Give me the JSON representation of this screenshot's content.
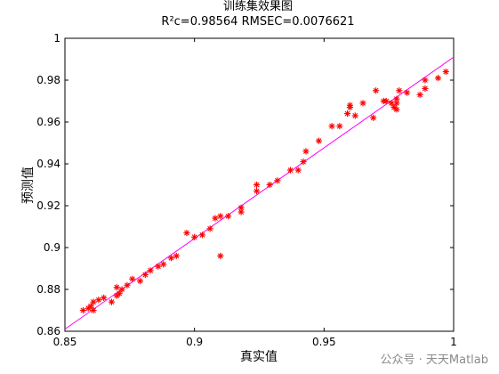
{
  "chart_data": {
    "type": "scatter",
    "title": "训练集效果图",
    "subtitle": "R²c=0.98564  RMSEC=0.0076621",
    "xlabel": "真实值",
    "ylabel": "预测值",
    "xlim": [
      0.85,
      1.0
    ],
    "ylim": [
      0.86,
      1.0
    ],
    "x_ticks": [
      "0.85",
      "0.9",
      "0.95",
      "1"
    ],
    "y_ticks": [
      "0.86",
      "0.88",
      "0.9",
      "0.92",
      "0.94",
      "0.96",
      "0.98",
      "1"
    ],
    "grid": false,
    "series": [
      {
        "marker": "asterisk",
        "color": "#ff0000",
        "points": [
          [
            0.857,
            0.87
          ],
          [
            0.859,
            0.871
          ],
          [
            0.86,
            0.872
          ],
          [
            0.861,
            0.87
          ],
          [
            0.861,
            0.874
          ],
          [
            0.863,
            0.875
          ],
          [
            0.865,
            0.876
          ],
          [
            0.868,
            0.874
          ],
          [
            0.87,
            0.877
          ],
          [
            0.871,
            0.878
          ],
          [
            0.87,
            0.881
          ],
          [
            0.872,
            0.88
          ],
          [
            0.874,
            0.882
          ],
          [
            0.876,
            0.885
          ],
          [
            0.879,
            0.884
          ],
          [
            0.881,
            0.887
          ],
          [
            0.883,
            0.889
          ],
          [
            0.886,
            0.891
          ],
          [
            0.888,
            0.892
          ],
          [
            0.891,
            0.895
          ],
          [
            0.893,
            0.896
          ],
          [
            0.897,
            0.907
          ],
          [
            0.9,
            0.905
          ],
          [
            0.903,
            0.906
          ],
          [
            0.906,
            0.909
          ],
          [
            0.908,
            0.914
          ],
          [
            0.91,
            0.915
          ],
          [
            0.91,
            0.896
          ],
          [
            0.913,
            0.915
          ],
          [
            0.918,
            0.919
          ],
          [
            0.918,
            0.917
          ],
          [
            0.924,
            0.927
          ],
          [
            0.924,
            0.93
          ],
          [
            0.929,
            0.93
          ],
          [
            0.932,
            0.932
          ],
          [
            0.937,
            0.937
          ],
          [
            0.94,
            0.937
          ],
          [
            0.942,
            0.941
          ],
          [
            0.943,
            0.946
          ],
          [
            0.948,
            0.951
          ],
          [
            0.953,
            0.958
          ],
          [
            0.956,
            0.958
          ],
          [
            0.959,
            0.964
          ],
          [
            0.96,
            0.967
          ],
          [
            0.96,
            0.968
          ],
          [
            0.962,
            0.963
          ],
          [
            0.965,
            0.969
          ],
          [
            0.969,
            0.962
          ],
          [
            0.97,
            0.975
          ],
          [
            0.973,
            0.97
          ],
          [
            0.974,
            0.97
          ],
          [
            0.976,
            0.969
          ],
          [
            0.977,
            0.967
          ],
          [
            0.978,
            0.966
          ],
          [
            0.978,
            0.971
          ],
          [
            0.978,
            0.969
          ],
          [
            0.979,
            0.975
          ],
          [
            0.982,
            0.974
          ],
          [
            0.987,
            0.973
          ],
          [
            0.989,
            0.976
          ],
          [
            0.989,
            0.98
          ],
          [
            0.994,
            0.981
          ],
          [
            0.997,
            0.984
          ]
        ]
      }
    ],
    "fit_line": {
      "color": "#ff00ff",
      "x": [
        0.85,
        1.0
      ],
      "y": [
        0.861,
        0.991
      ]
    }
  },
  "watermark": "公众号 · 天天Matlab"
}
